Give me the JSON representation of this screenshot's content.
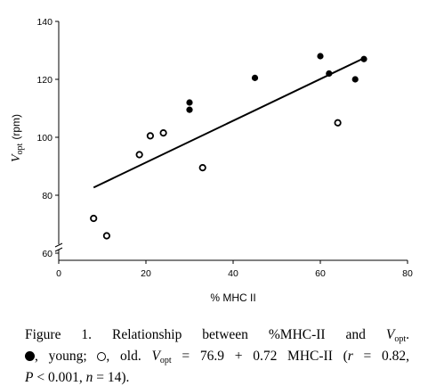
{
  "chart_data": {
    "type": "scatter",
    "title": "",
    "xlabel": "% MHC II",
    "ylabel": {
      "main": "V",
      "sub": "opt",
      "unit": "(rpm)"
    },
    "xlim": [
      0,
      80
    ],
    "ylim": [
      60,
      140
    ],
    "y_axis_break": true,
    "x_ticks": [
      0,
      20,
      40,
      60,
      80
    ],
    "y_ticks": [
      60,
      80,
      100,
      120,
      140
    ],
    "grid": false,
    "series": [
      {
        "marker": "filled-circle",
        "points": [
          {
            "x": 30,
            "y": 112
          },
          {
            "x": 30,
            "y": 109.5
          },
          {
            "x": 45,
            "y": 120.5
          },
          {
            "x": 60,
            "y": 128
          },
          {
            "x": 62,
            "y": 122
          },
          {
            "x": 68,
            "y": 120
          },
          {
            "x": 70,
            "y": 127
          }
        ]
      },
      {
        "marker": "open-circle",
        "points": [
          {
            "x": 8,
            "y": 72
          },
          {
            "x": 11,
            "y": 66
          },
          {
            "x": 18.5,
            "y": 94
          },
          {
            "x": 21,
            "y": 100.5
          },
          {
            "x": 24,
            "y": 101.5
          },
          {
            "x": 33,
            "y": 89.5
          },
          {
            "x": 64,
            "y": 105
          }
        ]
      }
    ],
    "regression": {
      "slope": 0.72,
      "intercept": 76.9,
      "x_range": [
        8,
        70
      ]
    }
  },
  "caption": {
    "line1": "Figure 1. Relationship between %MHC-II and ",
    "v": "V",
    "v_sub": "opt",
    "line1_end": ".",
    "young_label": ", young;",
    "old_label": ", old.",
    "eq_v": "V",
    "eq_sub": "opt",
    "eq_rest": " = 76.9 + 0.72 MHC-II",
    "stats_open": "(",
    "r_sym": "r",
    "r_val": " = 0.82,",
    "p_sym": "P",
    "p_val": " < 0.001, ",
    "n_sym": "n",
    "n_val": " = 14)."
  }
}
